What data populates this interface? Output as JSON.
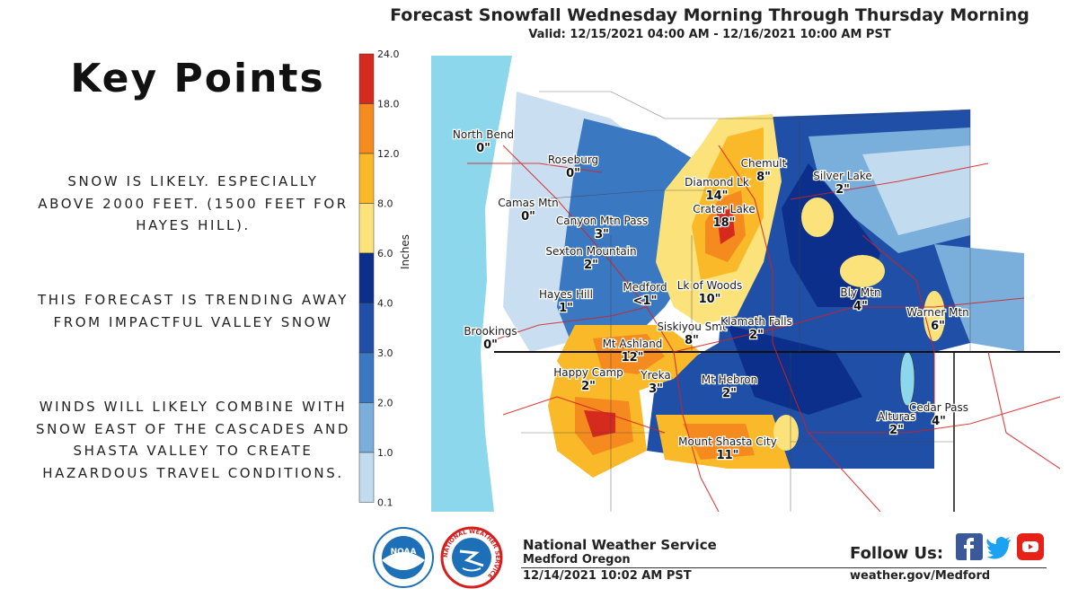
{
  "key_points": {
    "title": "Key Points",
    "points": [
      "Snow is likely. Especially above 2000 feet. (1500 feet for Hayes Hill).",
      "This forecast is trending away from impactful valley snow",
      "Winds will likely combine with snow east of the Cascades and Shasta Valley to create hazardous travel conditions."
    ]
  },
  "map": {
    "title": "Forecast Snowfall Wednesday Morning Through Thursday Morning",
    "valid": "Valid: 12/15/2021 04:00 AM - 12/16/2021 10:00 AM PST",
    "scale": {
      "unit_label": "Inches",
      "ticks": [
        "24.0",
        "18.0",
        "12.0",
        "8.0",
        "6.0",
        "4.0",
        "3.0",
        "2.0",
        "1.0",
        "0.1"
      ],
      "colors": [
        "#d52a1e",
        "#f58a1f",
        "#f9b929",
        "#fbe27a",
        "#0b2f8a",
        "#1f4fa6",
        "#3a78c2",
        "#7aaedb",
        "#c3dbef"
      ]
    },
    "locations": [
      {
        "name": "North Bend",
        "amount": "0\""
      },
      {
        "name": "Roseburg",
        "amount": "0\""
      },
      {
        "name": "Camas Mtn",
        "amount": "0\""
      },
      {
        "name": "Canyon Mtn Pass",
        "amount": "3\""
      },
      {
        "name": "Sexton Mountain",
        "amount": "2\""
      },
      {
        "name": "Hayes Hill",
        "amount": "1\""
      },
      {
        "name": "Medford",
        "amount": "<1\""
      },
      {
        "name": "Brookings",
        "amount": "0\""
      },
      {
        "name": "Chemult",
        "amount": "8\""
      },
      {
        "name": "Diamond Lk",
        "amount": "14\""
      },
      {
        "name": "Crater Lake",
        "amount": "18\""
      },
      {
        "name": "Lk of Woods",
        "amount": "10\""
      },
      {
        "name": "Siskiyou Smt",
        "amount": "8\""
      },
      {
        "name": "Mt Ashland",
        "amount": "12\""
      },
      {
        "name": "Klamath Falls",
        "amount": "2\""
      },
      {
        "name": "Silver Lake",
        "amount": "2\""
      },
      {
        "name": "Bly Mtn",
        "amount": "4\""
      },
      {
        "name": "Warner Mtn",
        "amount": "6\""
      },
      {
        "name": "Happy Camp",
        "amount": "2\""
      },
      {
        "name": "Yreka",
        "amount": "3\""
      },
      {
        "name": "Mt Hebron",
        "amount": "2\""
      },
      {
        "name": "Alturas",
        "amount": "2\""
      },
      {
        "name": "Cedar Pass",
        "amount": "4\""
      },
      {
        "name": "Mount Shasta City",
        "amount": "11\""
      }
    ]
  },
  "footer": {
    "org_name": "National Weather Service",
    "office": "Medford Oregon",
    "issued": "12/14/2021 10:02 AM PST",
    "follow_label": "Follow Us:",
    "website": "weather.gov/Medford",
    "noaa_text": "NOAA",
    "nws_ring_text": "NATIONAL WEATHER SERVICE",
    "social_icons": [
      "facebook-icon",
      "twitter-icon",
      "youtube-icon"
    ],
    "colors": {
      "facebook": "#3b5998",
      "twitter": "#1da1f2",
      "youtube": "#e62117",
      "noaa_blue": "#1d6fb8"
    }
  }
}
